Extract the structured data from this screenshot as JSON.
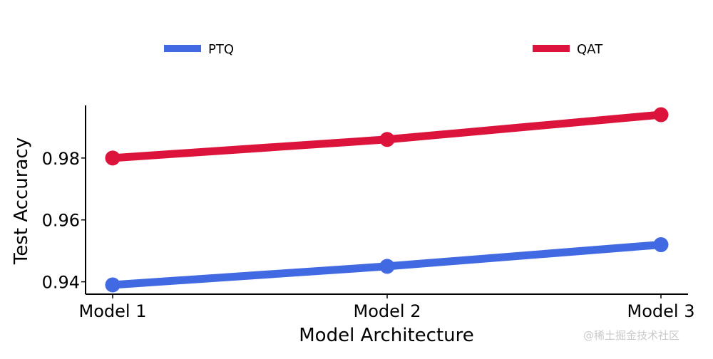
{
  "chart_data": {
    "type": "line",
    "categories": [
      "Model 1",
      "Model 2",
      "Model 3"
    ],
    "series": [
      {
        "name": "PTQ",
        "values": [
          0.939,
          0.945,
          0.952
        ],
        "color": "#4169e1"
      },
      {
        "name": "QAT",
        "values": [
          0.98,
          0.986,
          0.994
        ],
        "color": "#dc143c"
      }
    ],
    "xlabel": "Model Architecture",
    "ylabel": "Test Accuracy",
    "ylim": [
      0.936,
      0.997
    ],
    "yticks": [
      0.94,
      0.96,
      0.98
    ],
    "ytick_labels": [
      "0.94",
      "0.96",
      "0.98"
    ],
    "grid": false,
    "legend_position": "top"
  },
  "watermark": "@稀土掘金技术社区"
}
